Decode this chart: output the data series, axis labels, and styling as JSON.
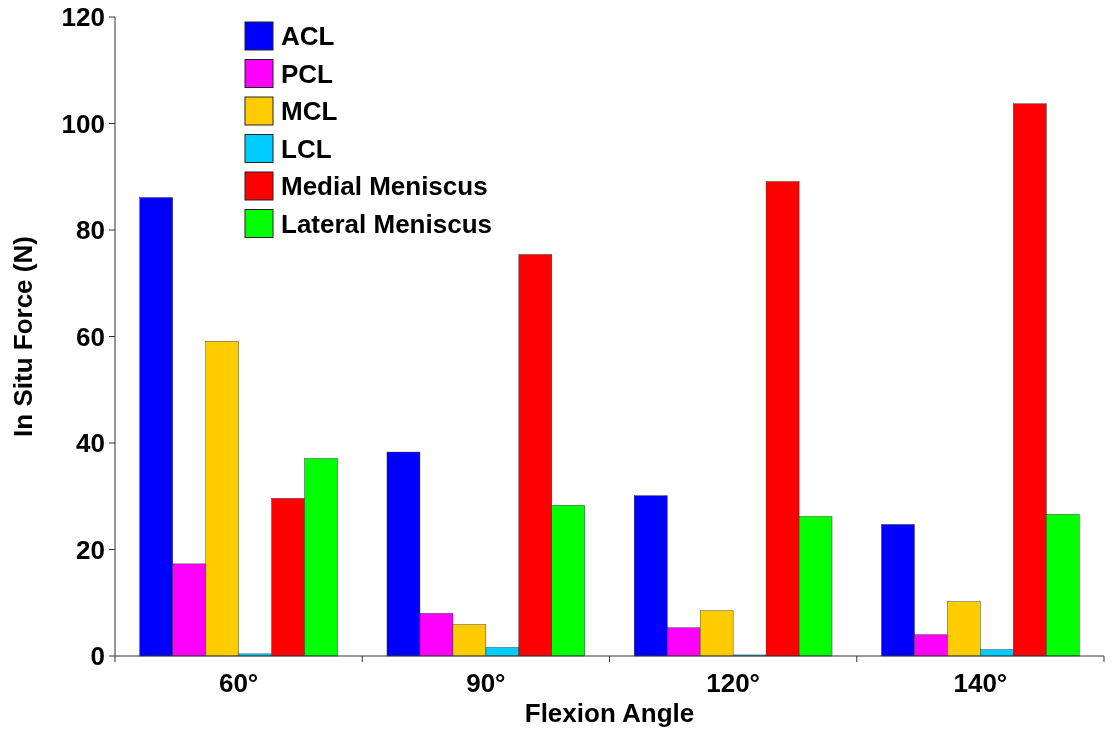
{
  "chart_data": {
    "type": "bar",
    "xlabel": "Flexion Angle",
    "ylabel": "In Situ Force (N)",
    "categories": [
      "60°",
      "90°",
      "120°",
      "140°"
    ],
    "series": [
      {
        "name": "ACL",
        "color": "#0000ff",
        "values": [
          86.1,
          38.3,
          30.1,
          24.7
        ]
      },
      {
        "name": "PCL",
        "color": "#ff00ff",
        "values": [
          17.3,
          8,
          5.3,
          4
        ]
      },
      {
        "name": "MCL",
        "color": "#ffcc00",
        "values": [
          59.1,
          5.9,
          8.5,
          10.2
        ]
      },
      {
        "name": "LCL",
        "color": "#00ccff",
        "values": [
          0.4,
          1.6,
          0.2,
          1.2
        ]
      },
      {
        "name": "Medial Meniscus",
        "color": "#ff0000",
        "values": [
          29.6,
          75.4,
          89.1,
          103.7
        ]
      },
      {
        "name": "Lateral Meniscus",
        "color": "#00ff00",
        "values": [
          37.1,
          28.3,
          26.2,
          26.6
        ]
      }
    ],
    "ylim": [
      0,
      120
    ],
    "yticks": [
      0,
      20,
      40,
      60,
      80,
      100,
      120
    ],
    "grid": false,
    "legend": "top left"
  }
}
